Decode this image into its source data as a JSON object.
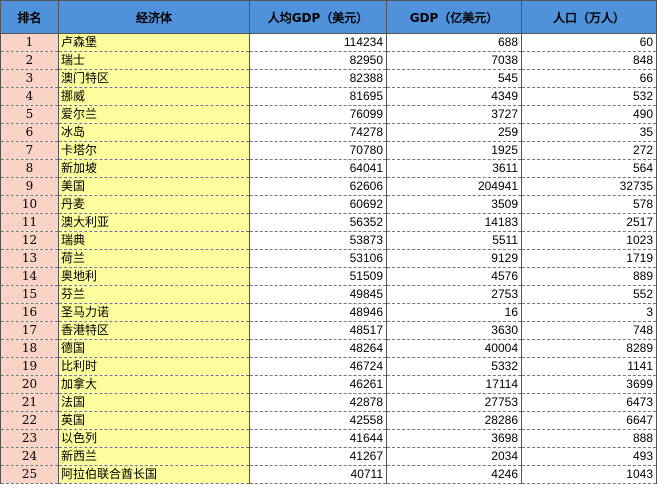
{
  "headers": {
    "rank": "排名",
    "economy": "经济体",
    "gdp_per_capita": "人均GDP（美元）",
    "gdp": "GDP（亿美元）",
    "population": "人口（万人）"
  },
  "rows": [
    {
      "rank": "1",
      "economy": "卢森堡",
      "gdp_per_capita": "114234",
      "gdp": "688",
      "population": "60"
    },
    {
      "rank": "2",
      "economy": "瑞士",
      "gdp_per_capita": "82950",
      "gdp": "7038",
      "population": "848"
    },
    {
      "rank": "3",
      "economy": "澳门特区",
      "gdp_per_capita": "82388",
      "gdp": "545",
      "population": "66"
    },
    {
      "rank": "4",
      "economy": "挪威",
      "gdp_per_capita": "81695",
      "gdp": "4349",
      "population": "532"
    },
    {
      "rank": "5",
      "economy": "爱尔兰",
      "gdp_per_capita": "76099",
      "gdp": "3727",
      "population": "490"
    },
    {
      "rank": "6",
      "economy": "冰岛",
      "gdp_per_capita": "74278",
      "gdp": "259",
      "population": "35"
    },
    {
      "rank": "7",
      "economy": "卡塔尔",
      "gdp_per_capita": "70780",
      "gdp": "1925",
      "population": "272"
    },
    {
      "rank": "8",
      "economy": "新加坡",
      "gdp_per_capita": "64041",
      "gdp": "3611",
      "population": "564"
    },
    {
      "rank": "9",
      "economy": "美国",
      "gdp_per_capita": "62606",
      "gdp": "204941",
      "population": "32735"
    },
    {
      "rank": "10",
      "economy": "丹麦",
      "gdp_per_capita": "60692",
      "gdp": "3509",
      "population": "578"
    },
    {
      "rank": "11",
      "economy": "澳大利亚",
      "gdp_per_capita": "56352",
      "gdp": "14183",
      "population": "2517"
    },
    {
      "rank": "12",
      "economy": "瑞典",
      "gdp_per_capita": "53873",
      "gdp": "5511",
      "population": "1023"
    },
    {
      "rank": "13",
      "economy": "荷兰",
      "gdp_per_capita": "53106",
      "gdp": "9129",
      "population": "1719"
    },
    {
      "rank": "14",
      "economy": "奥地利",
      "gdp_per_capita": "51509",
      "gdp": "4576",
      "population": "889"
    },
    {
      "rank": "15",
      "economy": "芬兰",
      "gdp_per_capita": "49845",
      "gdp": "2753",
      "population": "552"
    },
    {
      "rank": "16",
      "economy": "圣马力诺",
      "gdp_per_capita": "48946",
      "gdp": "16",
      "population": "3"
    },
    {
      "rank": "17",
      "economy": "香港特区",
      "gdp_per_capita": "48517",
      "gdp": "3630",
      "population": "748"
    },
    {
      "rank": "18",
      "economy": "德国",
      "gdp_per_capita": "48264",
      "gdp": "40004",
      "population": "8289"
    },
    {
      "rank": "19",
      "economy": "比利时",
      "gdp_per_capita": "46724",
      "gdp": "5332",
      "population": "1141"
    },
    {
      "rank": "20",
      "economy": "加拿大",
      "gdp_per_capita": "46261",
      "gdp": "17114",
      "population": "3699"
    },
    {
      "rank": "21",
      "economy": "法国",
      "gdp_per_capita": "42878",
      "gdp": "27753",
      "population": "6473"
    },
    {
      "rank": "22",
      "economy": "英国",
      "gdp_per_capita": "42558",
      "gdp": "28286",
      "population": "6647"
    },
    {
      "rank": "23",
      "economy": "以色列",
      "gdp_per_capita": "41644",
      "gdp": "3698",
      "population": "888"
    },
    {
      "rank": "24",
      "economy": "新西兰",
      "gdp_per_capita": "41267",
      "gdp": "2034",
      "population": "493"
    },
    {
      "rank": "25",
      "economy": "阿拉伯联合酋长国",
      "gdp_per_capita": "40711",
      "gdp": "4246",
      "population": "1043"
    }
  ]
}
